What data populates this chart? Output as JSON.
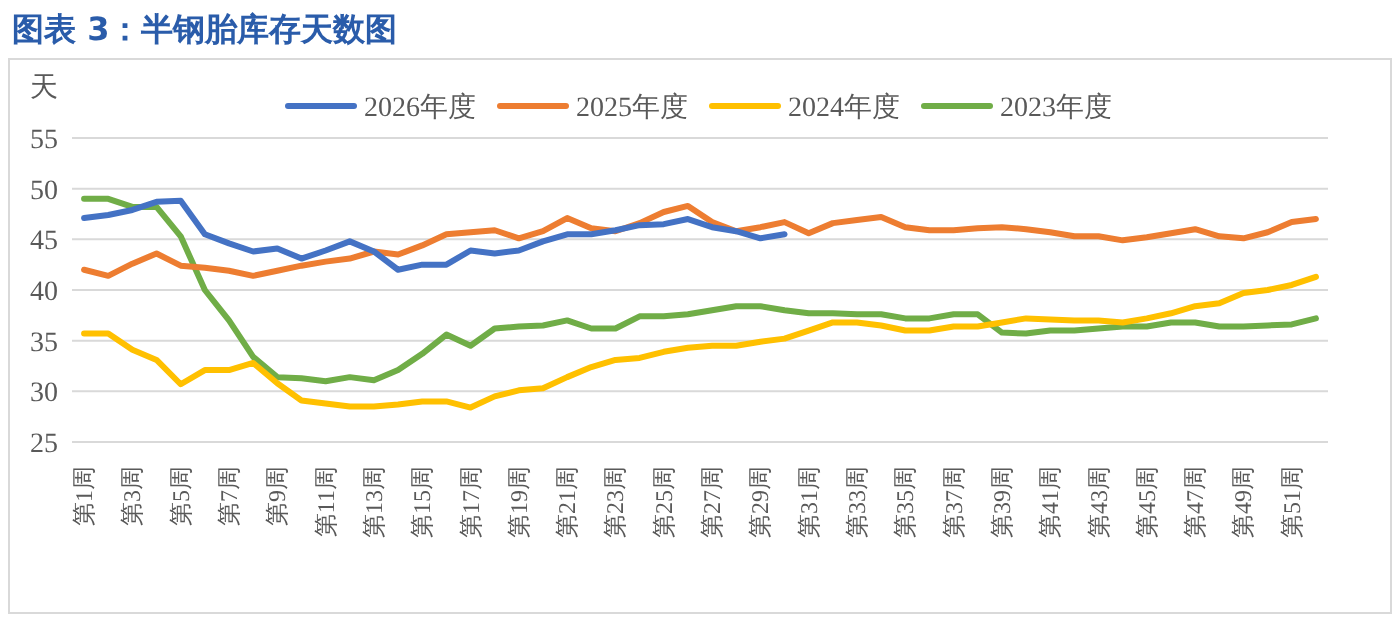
{
  "chart_data": {
    "type": "line",
    "title": "图表 3：半钢胎库存天数图",
    "ylabel": "天",
    "categories": [
      "第1周",
      null,
      "第3周",
      null,
      "第5周",
      null,
      "第7周",
      null,
      "第9周",
      null,
      "第11周",
      null,
      "第13周",
      null,
      "第15周",
      null,
      "第17周",
      null,
      "第19周",
      null,
      "第21周",
      null,
      "第23周",
      null,
      "第25周",
      null,
      "第27周",
      null,
      "第29周",
      null,
      "第31周",
      null,
      "第33周",
      null,
      "第35周",
      null,
      "第37周",
      null,
      "第39周",
      null,
      "第41周",
      null,
      "第43周",
      null,
      "第45周",
      null,
      "第47周",
      null,
      "第49周",
      null,
      "第51周",
      null
    ],
    "series": [
      {
        "name": "2026年度",
        "color": "#4472c4",
        "values": [
          47.1,
          47.4,
          47.9,
          48.7,
          48.8,
          45.5,
          44.6,
          43.8,
          44.1,
          43.1,
          43.9,
          44.8,
          43.8,
          42.0,
          42.5,
          42.5,
          43.9,
          43.6,
          43.9,
          44.8,
          45.5,
          45.5,
          45.9,
          46.4,
          46.5,
          47.0,
          46.2,
          45.8,
          45.1,
          45.5,
          null,
          null,
          null,
          null,
          null,
          null,
          null,
          null,
          null,
          null,
          null,
          null,
          null,
          null,
          null,
          null,
          null,
          null,
          null,
          null,
          null,
          null
        ]
      },
      {
        "name": "2025年度",
        "color": "#ed7d31",
        "values": [
          42.0,
          41.4,
          42.6,
          43.6,
          42.4,
          42.2,
          41.9,
          41.4,
          41.9,
          42.4,
          42.8,
          43.1,
          43.8,
          43.5,
          44.4,
          45.5,
          45.7,
          45.9,
          45.1,
          45.8,
          47.1,
          46.1,
          45.8,
          46.6,
          47.7,
          48.3,
          46.7,
          45.8,
          46.2,
          46.7,
          45.6,
          46.6,
          46.9,
          47.2,
          46.2,
          45.9,
          45.9,
          46.1,
          46.2,
          46.0,
          45.7,
          45.3,
          45.3,
          44.9,
          45.2,
          45.6,
          46.0,
          45.3,
          45.1,
          45.7,
          46.7,
          47.0
        ]
      },
      {
        "name": "2024年度",
        "color": "#ffc000",
        "values": [
          35.7,
          35.7,
          34.1,
          33.1,
          30.7,
          32.1,
          32.1,
          32.8,
          30.8,
          29.1,
          28.8,
          28.5,
          28.5,
          28.7,
          29.0,
          29.0,
          28.4,
          29.5,
          30.1,
          30.3,
          31.4,
          32.4,
          33.1,
          33.3,
          33.9,
          34.3,
          34.5,
          34.5,
          34.9,
          35.2,
          36.0,
          36.8,
          36.8,
          36.5,
          36.0,
          36.0,
          36.4,
          36.4,
          36.8,
          37.2,
          37.1,
          37.0,
          37.0,
          36.8,
          37.2,
          37.7,
          38.4,
          38.7,
          39.7,
          40.0,
          40.5,
          41.3
        ]
      },
      {
        "name": "2023年度",
        "color": "#70ad47",
        "values": [
          49.0,
          49.0,
          48.2,
          48.2,
          45.3,
          40.0,
          37.0,
          33.4,
          31.4,
          31.3,
          31.0,
          31.4,
          31.1,
          32.1,
          33.7,
          35.6,
          34.5,
          36.2,
          36.4,
          36.5,
          37.0,
          36.2,
          36.2,
          37.4,
          37.4,
          37.6,
          38.0,
          38.4,
          38.4,
          38.0,
          37.7,
          37.7,
          37.6,
          37.6,
          37.2,
          37.2,
          37.6,
          37.6,
          35.8,
          35.7,
          36.0,
          36.0,
          36.2,
          36.4,
          36.4,
          36.8,
          36.8,
          36.4,
          36.4,
          36.5,
          36.6,
          37.2
        ]
      }
    ],
    "ylim": [
      25,
      55
    ],
    "yticks": [
      25,
      30,
      35,
      40,
      45,
      50,
      55
    ],
    "grid": "y",
    "legend": "top"
  }
}
